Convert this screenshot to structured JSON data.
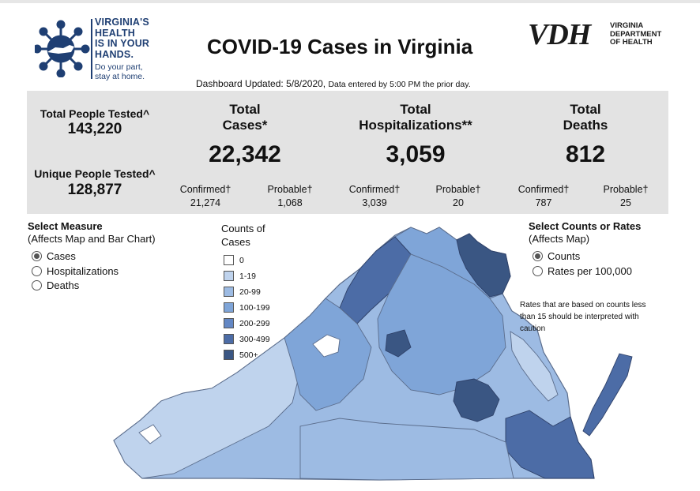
{
  "header": {
    "logo": {
      "lines": [
        "VIRGINIA'S",
        "HEALTH",
        "IS IN YOUR",
        "HANDS."
      ],
      "tagline_lines": [
        "Do your part,",
        "stay at home."
      ],
      "icon": "virus-icon"
    },
    "title": "COVID-19 Cases in Virginia",
    "vdh": {
      "mark": "VDH",
      "name_lines": [
        "VIRGINIA",
        "DEPARTMENT",
        "OF HEALTH"
      ]
    },
    "updated": "Dashboard Updated: 5/8/2020,",
    "updated_note": "Data entered by 5:00 PM the prior day."
  },
  "stats": {
    "total_tested": {
      "label": "Total People Tested^",
      "value": "143,220"
    },
    "unique_tested": {
      "label": "Unique People Tested^",
      "value": "128,877"
    },
    "cases": {
      "label_line1": "Total",
      "label_line2": "Cases*",
      "value": "22,342",
      "confirmed_label": "Confirmed†",
      "confirmed": "21,274",
      "probable_label": "Probable†",
      "probable": "1,068"
    },
    "hospitalizations": {
      "label_line1": "Total",
      "label_line2": "Hospitalizations**",
      "value": "3,059",
      "confirmed_label": "Confirmed†",
      "confirmed": "3,039",
      "probable_label": "Probable†",
      "probable": "20"
    },
    "deaths": {
      "label_line1": "Total",
      "label_line2": "Deaths",
      "value": "812",
      "confirmed_label": "Confirmed†",
      "confirmed": "787",
      "probable_label": "Probable†",
      "probable": "25"
    }
  },
  "measure": {
    "title": "Select Measure",
    "subtitle": "(Affects Map and Bar Chart)",
    "options": [
      "Cases",
      "Hospitalizations",
      "Deaths"
    ],
    "selected": "Cases"
  },
  "legend": {
    "title_line1": "Counts of",
    "title_line2": "Cases",
    "bins": [
      {
        "label": "0",
        "color": "#ffffff"
      },
      {
        "label": "1-19",
        "color": "#bfd3ed"
      },
      {
        "label": "20-99",
        "color": "#9dbbe3"
      },
      {
        "label": "100-199",
        "color": "#7fa5d8"
      },
      {
        "label": "200-299",
        "color": "#6387c4"
      },
      {
        "label": "300-499",
        "color": "#4c6ca6"
      },
      {
        "label": "500+",
        "color": "#3a5683"
      }
    ]
  },
  "counts_rates": {
    "title": "Select Counts or Rates",
    "subtitle": "(Affects Map)",
    "options": [
      "Counts",
      "Rates per 100,000"
    ],
    "selected": "Counts"
  },
  "caution_note": "Rates that are based on counts less than 15 should be interpreted with caution"
}
